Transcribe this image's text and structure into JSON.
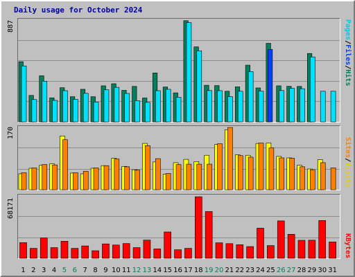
{
  "title": "Daily usage for October 2024",
  "colors": {
    "hits": "#00805c",
    "files": "#0040ff",
    "pages": "#00e0ff",
    "visits": "#ffff00",
    "sites": "#ff8000",
    "kbytes": "#ff0000",
    "weekday_label": "#000000",
    "weekend_label": "#00805c"
  },
  "legend_top": {
    "pages": "Pages",
    "files": "Files",
    "hits": "Hits",
    "sep": "/"
  },
  "legend_mid": {
    "sites": "Sites",
    "visits": "Visits",
    "sep": "/"
  },
  "legend_bot": {
    "kbytes": "KBytes"
  },
  "chart_data": {
    "type": "bar",
    "title": "Daily usage for October 2024",
    "categories": [
      "1",
      "2",
      "3",
      "4",
      "5",
      "6",
      "7",
      "8",
      "9",
      "10",
      "11",
      "12",
      "13",
      "14",
      "15",
      "16",
      "17",
      "18",
      "19",
      "20",
      "21",
      "22",
      "23",
      "24",
      "25",
      "26",
      "27",
      "28",
      "29",
      "30",
      "31"
    ],
    "weekend_days": [
      "5",
      "6",
      "12",
      "13",
      "19",
      "20",
      "26",
      "27"
    ],
    "grid": true,
    "panels": [
      {
        "name": "hits-files-pages",
        "ymax_label": "887",
        "ylim": [
          0,
          887
        ],
        "series": [
          {
            "name": "Hits",
            "values": [
              521,
              229,
              399,
              208,
              296,
              218,
              282,
              218,
              312,
              330,
              273,
              307,
              207,
              423,
              302,
              251,
              876,
              649,
              317,
              314,
              265,
              303,
              491,
              294,
              680,
              312,
              308,
              307,
              592,
              0,
              0
            ]
          },
          {
            "name": "Files",
            "values": [
              0,
              0,
              0,
              0,
              0,
              0,
              0,
              0,
              0,
              0,
              0,
              0,
              0,
              0,
              0,
              0,
              0,
              0,
              0,
              0,
              0,
              0,
              0,
              0,
              627,
              0,
              0,
              0,
              0,
              0,
              0
            ]
          },
          {
            "name": "Pages",
            "values": [
              484,
              193,
              352,
              186,
              270,
              195,
              247,
              171,
              278,
              299,
              246,
              184,
              169,
              270,
              282,
              213,
              859,
              615,
              271,
              270,
              219,
              265,
              435,
              266,
              0,
              271,
              290,
              287,
              562,
              265,
              265
            ]
          }
        ]
      },
      {
        "name": "visits-sites",
        "ymax_label": "170",
        "ylim": [
          0,
          170
        ],
        "series": [
          {
            "name": "Visits",
            "values": [
              43,
              58,
              66,
              70,
              145,
              45,
              43,
              58,
              65,
              85,
              63,
              54,
              125,
              75,
              42,
              73,
              82,
              76,
              93,
              122,
              162,
              94,
              93,
              125,
              126,
              90,
              86,
              66,
              56,
              81,
              0
            ]
          },
          {
            "name": "Sites",
            "values": [
              46,
              59,
              68,
              67,
              135,
              46,
              50,
              59,
              65,
              83,
              62,
              53,
              119,
              84,
              44,
              68,
              69,
              69,
              69,
              124,
              168,
              92,
              88,
              126,
              113,
              86,
              85,
              62,
              54,
              73,
              59
            ]
          }
        ]
      },
      {
        "name": "kbytes",
        "ymax_label": "68171",
        "ylim": [
          0,
          68171
        ],
        "series": [
          {
            "name": "KBytes",
            "values": [
              17000,
              10800,
              22000,
              11600,
              18500,
              10800,
              13400,
              8200,
              15600,
              14400,
              16000,
              11600,
              19700,
              10200,
              28500,
              9300,
              10800,
              66600,
              50600,
              16800,
              15900,
              14700,
              12700,
              32600,
              13800,
              40500,
              26000,
              19500,
              19600,
              40900,
              17700
            ]
          }
        ]
      }
    ]
  }
}
